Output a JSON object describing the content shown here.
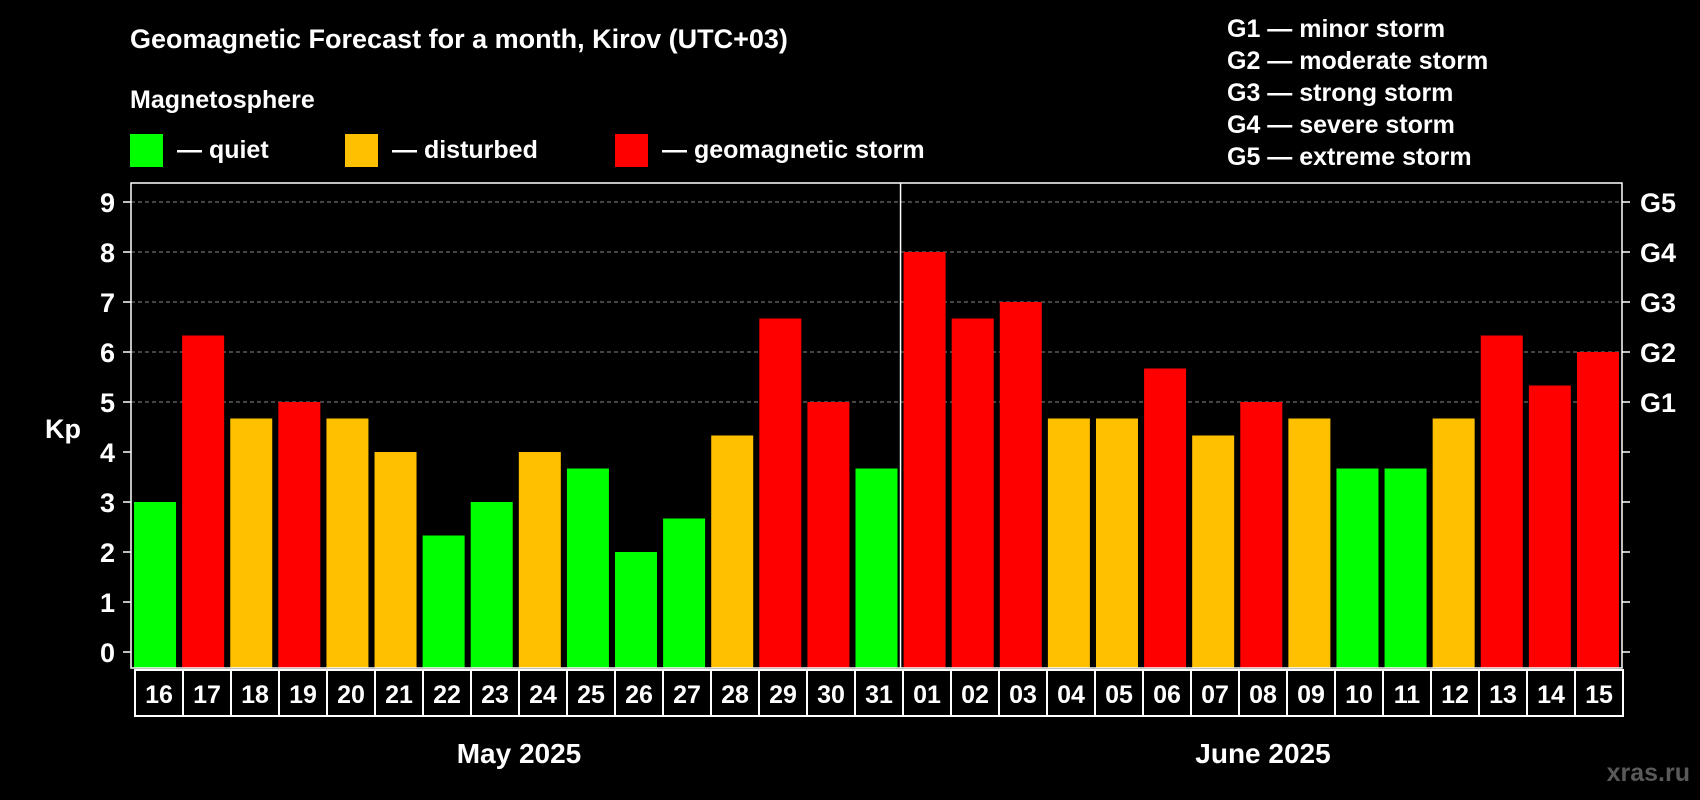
{
  "chart_data": {
    "type": "bar",
    "title": "Geomagnetic Forecast for a month, Kirov (UTC+03)",
    "legend_title": "Magnetosphere",
    "legend": [
      {
        "key": "quiet",
        "label": "— quiet",
        "color": "#00ff00"
      },
      {
        "key": "disturbed",
        "label": "— disturbed",
        "color": "#ffc000"
      },
      {
        "key": "storm",
        "label": "— geomagnetic storm",
        "color": "#ff0000"
      }
    ],
    "storm_scale": [
      "G1 — minor storm",
      "G2 — moderate storm",
      "G3 — strong storm",
      "G4 — severe storm",
      "G5 — extreme storm"
    ],
    "ylabel": "Kp",
    "ylim": [
      0,
      9
    ],
    "yticks": [
      0,
      1,
      2,
      3,
      4,
      5,
      6,
      7,
      8,
      9
    ],
    "right_ticks": [
      {
        "kp": 5,
        "label": "G1"
      },
      {
        "kp": 6,
        "label": "G2"
      },
      {
        "kp": 7,
        "label": "G3"
      },
      {
        "kp": 8,
        "label": "G4"
      },
      {
        "kp": 9,
        "label": "G5"
      }
    ],
    "grid": "dashed at Kp 5-9",
    "categories": [
      "16",
      "17",
      "18",
      "19",
      "20",
      "21",
      "22",
      "23",
      "24",
      "25",
      "26",
      "27",
      "28",
      "29",
      "30",
      "31",
      "01",
      "02",
      "03",
      "04",
      "05",
      "06",
      "07",
      "08",
      "09",
      "10",
      "11",
      "12",
      "13",
      "14",
      "15"
    ],
    "values": [
      3,
      6.33,
      4.67,
      5,
      4.67,
      4,
      2.33,
      3,
      4,
      3.67,
      2,
      2.67,
      4.33,
      6.67,
      5,
      3.67,
      8,
      6.67,
      7,
      4.67,
      4.67,
      5.67,
      4.33,
      5,
      4.67,
      3.67,
      3.67,
      4.67,
      6.33,
      5.33,
      6
    ],
    "status": [
      "quiet",
      "storm",
      "disturbed",
      "storm",
      "disturbed",
      "disturbed",
      "quiet",
      "quiet",
      "disturbed",
      "quiet",
      "quiet",
      "quiet",
      "disturbed",
      "storm",
      "storm",
      "quiet",
      "storm",
      "storm",
      "storm",
      "disturbed",
      "disturbed",
      "storm",
      "disturbed",
      "storm",
      "disturbed",
      "quiet",
      "quiet",
      "disturbed",
      "storm",
      "storm",
      "storm"
    ],
    "months": [
      {
        "label": "May 2025",
        "count": 16
      },
      {
        "label": "June 2025",
        "count": 15
      }
    ]
  },
  "watermark": "xras.ru"
}
